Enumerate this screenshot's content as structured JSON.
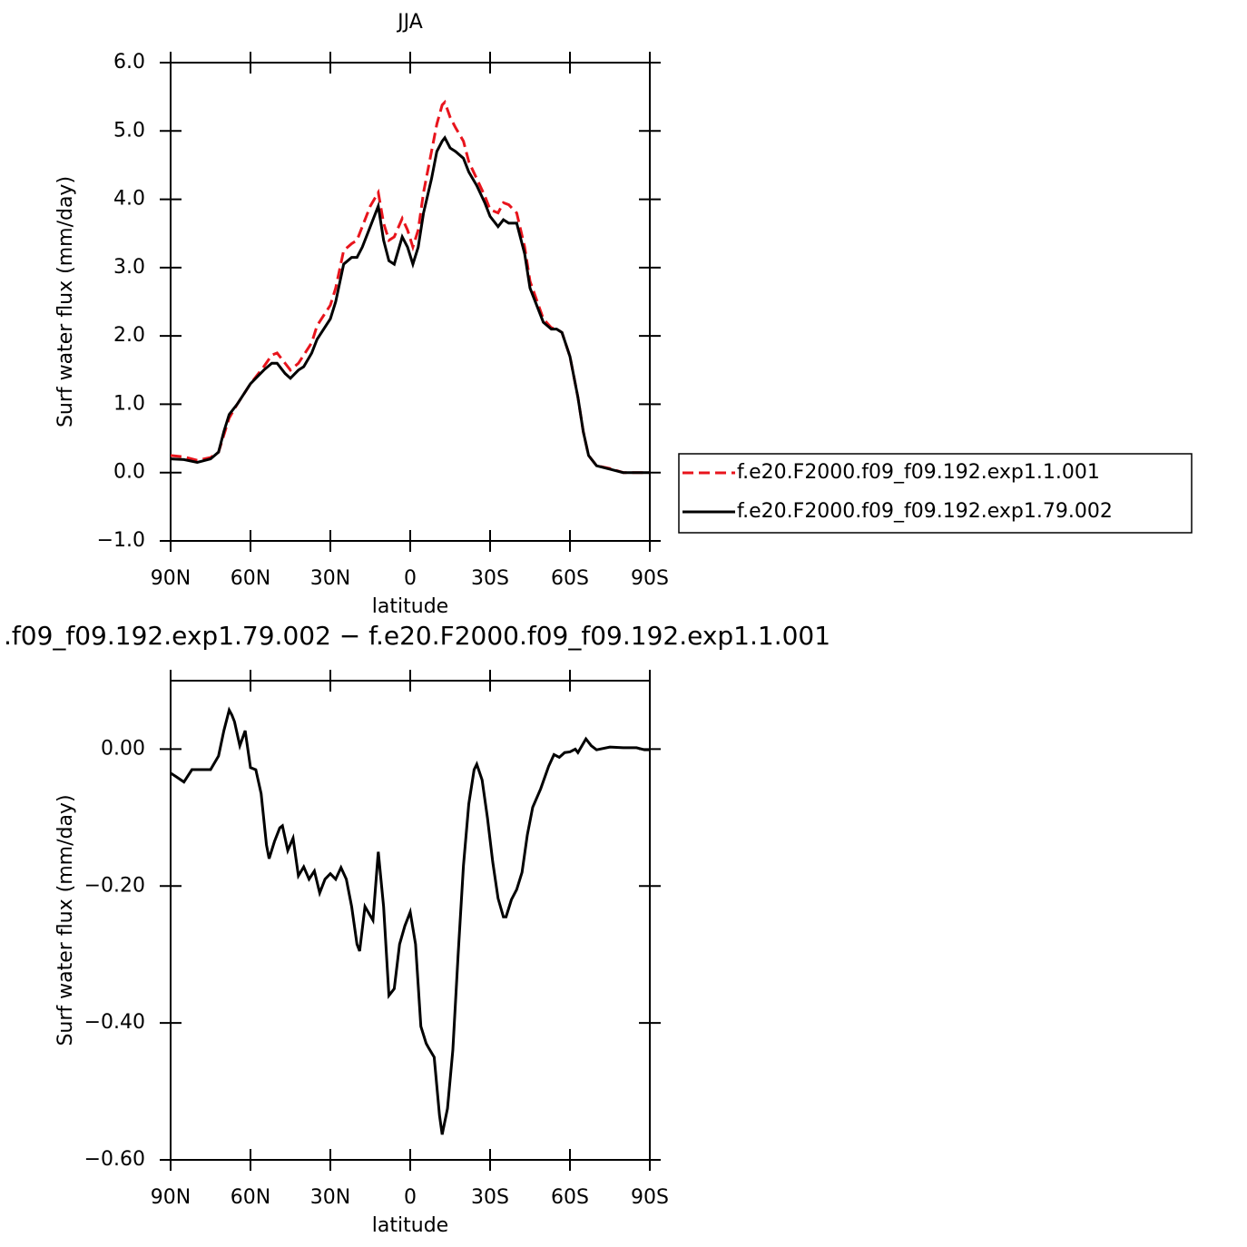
{
  "chart_data": [
    {
      "type": "line",
      "title": "JJA",
      "xlabel": "latitude",
      "ylabel": "Surf water flux (mm/day)",
      "x": [
        90,
        85,
        80,
        75,
        72,
        70,
        68,
        65,
        60,
        55,
        52,
        50,
        47,
        45,
        42,
        40,
        37,
        35,
        30,
        28,
        25,
        22,
        20,
        18,
        15,
        12,
        10,
        8,
        6,
        3,
        1,
        -1,
        -3,
        -5,
        -8,
        -10,
        -12,
        -13,
        -15,
        -17,
        -20,
        -22,
        -25,
        -28,
        -30,
        -33,
        -35,
        -37,
        -40,
        -43,
        -45,
        -50,
        -53,
        -55,
        -57,
        -60,
        -63,
        -65,
        -67,
        -70,
        -75,
        -80,
        -85,
        -90
      ],
      "series": [
        {
          "name": "f.e20.F2000.f09_f09.192.exp1.1.001",
          "color": "#e8141c",
          "style": "dashed",
          "values": [
            0.25,
            0.23,
            0.18,
            0.22,
            0.3,
            0.55,
            0.8,
            1.0,
            1.3,
            1.55,
            1.72,
            1.75,
            1.6,
            1.5,
            1.6,
            1.72,
            1.9,
            2.15,
            2.45,
            2.7,
            3.25,
            3.35,
            3.4,
            3.6,
            3.9,
            4.1,
            3.65,
            3.4,
            3.45,
            3.72,
            3.55,
            3.3,
            3.55,
            4.1,
            4.7,
            5.1,
            5.38,
            5.42,
            5.2,
            5.05,
            4.85,
            4.55,
            4.3,
            4.05,
            3.85,
            3.8,
            3.95,
            3.92,
            3.8,
            3.3,
            2.8,
            2.25,
            2.12,
            2.1,
            2.05,
            1.7,
            1.1,
            0.6,
            0.25,
            0.1,
            0.06,
            0.0,
            0.0,
            0.0
          ]
        },
        {
          "name": "f.e20.F2000.f09_f09.192.exp1.79.002",
          "color": "#000000",
          "style": "solid",
          "values": [
            0.2,
            0.19,
            0.15,
            0.2,
            0.3,
            0.6,
            0.85,
            1.0,
            1.3,
            1.5,
            1.6,
            1.6,
            1.45,
            1.38,
            1.5,
            1.55,
            1.75,
            1.95,
            2.25,
            2.5,
            3.05,
            3.15,
            3.15,
            3.3,
            3.6,
            3.9,
            3.4,
            3.1,
            3.05,
            3.45,
            3.3,
            3.05,
            3.3,
            3.8,
            4.3,
            4.7,
            4.85,
            4.9,
            4.75,
            4.7,
            4.6,
            4.4,
            4.2,
            3.95,
            3.75,
            3.6,
            3.7,
            3.65,
            3.65,
            3.2,
            2.7,
            2.2,
            2.1,
            2.1,
            2.05,
            1.7,
            1.1,
            0.6,
            0.25,
            0.1,
            0.05,
            0.0,
            0.0,
            0.0
          ]
        }
      ],
      "xlim": [
        90,
        -90
      ],
      "xticks": [
        {
          "value": 90,
          "label": "90N"
        },
        {
          "value": 60,
          "label": "60N"
        },
        {
          "value": 30,
          "label": "30N"
        },
        0,
        {
          "value": -30,
          "label": "30S"
        },
        {
          "value": -60,
          "label": "60S"
        },
        {
          "value": -90,
          "label": "90S"
        }
      ],
      "ylim": [
        -1,
        6
      ],
      "yticks": [
        {
          "value": -1,
          "label": "−1.0"
        },
        {
          "value": 0,
          "label": "0.0"
        },
        {
          "value": 1,
          "label": "1.0"
        },
        {
          "value": 2,
          "label": "2.0"
        },
        {
          "value": 3,
          "label": "3.0"
        },
        {
          "value": 4,
          "label": "4.0"
        },
        {
          "value": 5,
          "label": "5.0"
        },
        {
          "value": 6,
          "label": "6.0"
        }
      ],
      "legend": "right"
    },
    {
      "type": "line",
      "title": ".f09_f09.192.exp1.79.002 − f.e20.F2000.f09_f09.192.exp1.1.001",
      "xlabel": "latitude",
      "ylabel": "Surf water flux (mm/day)",
      "x": [
        90,
        88,
        85,
        82,
        80,
        75,
        72,
        70,
        68,
        67,
        66,
        64,
        62,
        60,
        58,
        56,
        54,
        53,
        51,
        49,
        48,
        46,
        44,
        42,
        40,
        38,
        36,
        34,
        32,
        30,
        28,
        26,
        24,
        22,
        20,
        19,
        17,
        14,
        12,
        10,
        8,
        6,
        4,
        2,
        0,
        -2,
        -4,
        -6,
        -7,
        -9,
        -11,
        -12,
        -14,
        -16,
        -18,
        -20,
        -22,
        -24,
        -25,
        -27,
        -29,
        -31,
        -33,
        -35,
        -36,
        -38,
        -40,
        -42,
        -44,
        -46,
        -49,
        -52,
        -54,
        -56,
        -58,
        -60,
        -62,
        -63,
        -66,
        -68,
        -70,
        -75,
        -80,
        -85,
        -88,
        -90
      ],
      "series": [
        {
          "color": "#000000",
          "style": "solid",
          "values": [
            -0.035,
            -0.04,
            -0.048,
            -0.03,
            -0.03,
            -0.03,
            -0.01,
            0.027,
            0.057,
            0.05,
            0.04,
            0.005,
            0.027,
            -0.027,
            -0.03,
            -0.065,
            -0.14,
            -0.16,
            -0.135,
            -0.115,
            -0.112,
            -0.148,
            -0.13,
            -0.185,
            -0.172,
            -0.19,
            -0.178,
            -0.21,
            -0.19,
            -0.182,
            -0.19,
            -0.173,
            -0.19,
            -0.23,
            -0.285,
            -0.295,
            -0.23,
            -0.25,
            -0.15,
            -0.23,
            -0.36,
            -0.35,
            -0.285,
            -0.258,
            -0.238,
            -0.285,
            -0.405,
            -0.43,
            -0.437,
            -0.45,
            -0.535,
            -0.563,
            -0.525,
            -0.44,
            -0.3,
            -0.17,
            -0.08,
            -0.03,
            -0.022,
            -0.045,
            -0.1,
            -0.165,
            -0.218,
            -0.245,
            -0.245,
            -0.22,
            -0.205,
            -0.18,
            -0.125,
            -0.085,
            -0.058,
            -0.025,
            -0.008,
            -0.012,
            -0.005,
            -0.004,
            0.0,
            -0.005,
            0.015,
            0.005,
            -0.001,
            0.003,
            0.002,
            0.002,
            -0.001,
            -0.001
          ]
        }
      ],
      "xlim": [
        90,
        -90
      ],
      "xticks": [
        {
          "value": 90,
          "label": "90N"
        },
        {
          "value": 60,
          "label": "60N"
        },
        {
          "value": 30,
          "label": "30N"
        },
        0,
        {
          "value": -30,
          "label": "30S"
        },
        {
          "value": -60,
          "label": "60S"
        },
        {
          "value": -90,
          "label": "90S"
        }
      ],
      "ylim": [
        -0.6,
        0.1
      ],
      "yticks": [
        {
          "value": -0.6,
          "label": "−0.60"
        },
        {
          "value": -0.4,
          "label": "−0.40"
        },
        {
          "value": -0.2,
          "label": "−0.20"
        },
        {
          "value": 0,
          "label": "0.00"
        }
      ]
    }
  ]
}
